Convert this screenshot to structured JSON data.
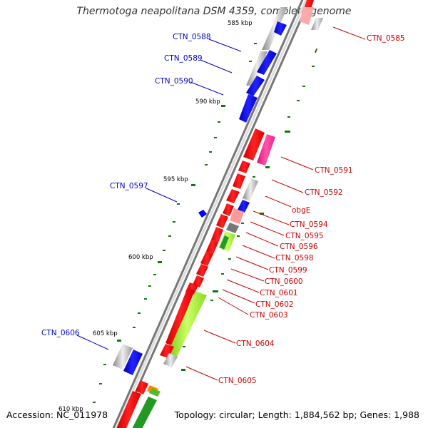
{
  "title": "Thermotoga neapolitana DSM 4359, complete genome",
  "footer": {
    "accession": "Accession: NC_011978",
    "summary": "Topology: circular; Length: 1,884,562 bp; Genes: 1,988"
  },
  "ticks": [
    {
      "label": "585 kbp"
    },
    {
      "label": "590 kbp"
    },
    {
      "label": "595 kbp"
    },
    {
      "label": "600 kbp"
    },
    {
      "label": "605 kbp"
    },
    {
      "label": "610 kbp"
    }
  ],
  "gene_labels_left": [
    {
      "text": "CTN_0588"
    },
    {
      "text": "CTN_0589"
    },
    {
      "text": "CTN_0590"
    },
    {
      "text": "CTN_0597"
    },
    {
      "text": "CTN_0606"
    }
  ],
  "gene_labels_right": [
    {
      "text": "CTN_0585"
    },
    {
      "text": "CTN_0591"
    },
    {
      "text": "CTN_0592"
    },
    {
      "text": "obgE"
    },
    {
      "text": "CTN_0594"
    },
    {
      "text": "CTN_0595"
    },
    {
      "text": "CTN_0596"
    },
    {
      "text": "CTN_0598"
    },
    {
      "text": "CTN_0599"
    },
    {
      "text": "CTN_0600"
    },
    {
      "text": "CTN_0601"
    },
    {
      "text": "CTN_0602"
    },
    {
      "text": "CTN_0603"
    },
    {
      "text": "CTN_0604"
    },
    {
      "text": "CTN_0605"
    }
  ],
  "colors": {
    "backbone": "#777777",
    "left_label": "#0000cc",
    "right_label": "#cc0000",
    "forward_gene": "#0000ff",
    "reverse_gene": "#ff0000",
    "gray_gene": "#bbbbbb",
    "pink_gene": "#ff3399",
    "light_pink_gene": "#ff9999",
    "lime_gene": "#aaff33",
    "dark_gray_gene": "#777777",
    "green_gene": "#229922",
    "gc_dot": "#117711"
  }
}
